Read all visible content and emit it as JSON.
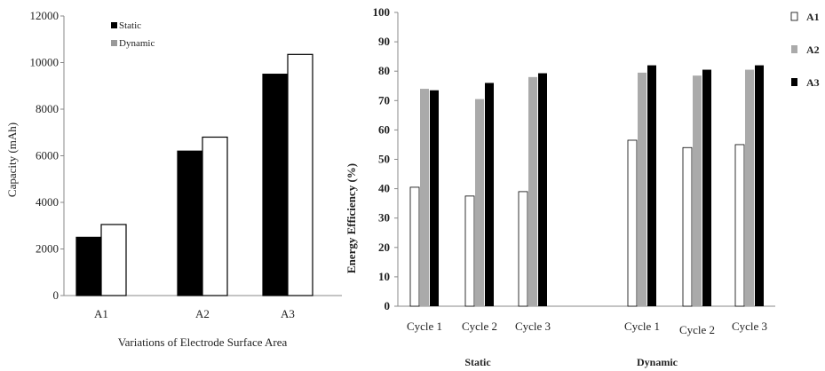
{
  "chart_data": [
    {
      "type": "bar",
      "xlabel": "Variations of Electrode Surface Area",
      "ylabel": "Capacity (mAh)",
      "categories": [
        "A1",
        "A2",
        "A3"
      ],
      "ylim": [
        0,
        12000
      ],
      "yticks": [
        "0",
        "2000",
        "4000",
        "6000",
        "8000",
        "10000",
        "12000"
      ],
      "grid": false,
      "legend_position": "top-left",
      "series": [
        {
          "name": "Static",
          "color": "#000000",
          "values": [
            2500,
            6200,
            9500
          ]
        },
        {
          "name": "Dynamic",
          "color": "#ffffff",
          "legend_color": "#999999",
          "values": [
            3050,
            6800,
            10350
          ]
        }
      ]
    },
    {
      "type": "bar",
      "ylabel": "Energy Efficiency (%)",
      "ylim": [
        0,
        100
      ],
      "yticks": [
        "0",
        "10",
        "20",
        "30",
        "40",
        "50",
        "60",
        "70",
        "80",
        "90",
        "100"
      ],
      "grid": false,
      "legend_position": "right",
      "groups": [
        {
          "label": "Static",
          "categories": [
            "Cycle 1",
            "Cycle 2",
            "Cycle 3"
          ]
        },
        {
          "label": "Dynamic",
          "categories": [
            "Cycle 1",
            "Cycle 2",
            "Cycle 3"
          ]
        }
      ],
      "series": [
        {
          "name": "A1",
          "color": "#ffffff",
          "values": [
            40.5,
            37.5,
            39,
            56.5,
            54,
            55
          ]
        },
        {
          "name": "A2",
          "color": "#aaaaaa",
          "values": [
            74,
            70.5,
            78,
            79.5,
            78.5,
            80.5
          ]
        },
        {
          "name": "A3",
          "color": "#000000",
          "values": [
            73.5,
            76,
            79.3,
            82,
            80.5,
            82
          ]
        }
      ]
    }
  ]
}
